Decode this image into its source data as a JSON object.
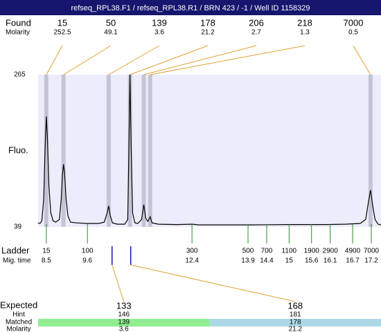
{
  "header": {
    "title": "refseq_RPL38.F1 / refseq_RPL38.R1 / BRN 423 / -1 / Well ID 1158329"
  },
  "chart_data": {
    "type": "electropherogram",
    "found_label": "Found",
    "found_molarity_label": "Molarity",
    "y_axis_label": "Fluo.",
    "found": {
      "sizes": [
        15,
        50,
        139,
        178,
        206,
        218,
        7000
      ],
      "molarity": [
        252.5,
        49.1,
        3.6,
        21.2,
        2.7,
        1.3,
        0.5
      ],
      "x": [
        8.5,
        8.96,
        10.17,
        10.74,
        11.11,
        11.28,
        17.18
      ]
    },
    "xlim": [
      8.28,
      17.46
    ],
    "ylim": [
      39,
      265
    ],
    "yticks": [
      39,
      265
    ],
    "trace": {
      "color": "#000000",
      "x": [
        8.28,
        8.33,
        8.38,
        8.43,
        8.47,
        8.5,
        8.53,
        8.57,
        8.62,
        8.68,
        8.75,
        8.85,
        8.9,
        8.93,
        8.96,
        8.99,
        9.03,
        9.08,
        9.15,
        9.3,
        9.6,
        9.9,
        10.05,
        10.12,
        10.17,
        10.21,
        10.27,
        10.4,
        10.6,
        10.68,
        10.71,
        10.74,
        10.77,
        10.81,
        10.87,
        10.95,
        11.05,
        11.11,
        11.16,
        11.22,
        11.28,
        11.33,
        11.5,
        12,
        12.4,
        12.6,
        13,
        14,
        15,
        16,
        16.5,
        16.9,
        17.05,
        17.12,
        17.18,
        17.24,
        17.3,
        17.38,
        17.46
      ],
      "y": [
        45,
        44,
        48,
        80,
        160,
        203,
        170,
        100,
        60,
        48,
        46,
        50,
        80,
        115,
        132,
        118,
        80,
        55,
        46,
        45,
        44,
        44,
        46,
        58,
        70,
        56,
        45,
        43,
        43,
        50,
        150,
        265,
        160,
        60,
        45,
        44,
        50,
        72,
        52,
        47,
        54,
        45,
        43,
        42.5,
        43,
        42,
        42,
        42,
        42.5,
        42.5,
        43,
        44,
        50,
        75,
        93.5,
        70,
        50,
        43,
        42
      ]
    },
    "ladder": {
      "label": "Ladder",
      "time_label": "Mig. time",
      "sizes": [
        15,
        100,
        300,
        500,
        700,
        1100,
        1900,
        2900,
        4900,
        7000
      ],
      "times": [
        8.5,
        9.6,
        12.4,
        13.9,
        14.4,
        15,
        15.6,
        16.1,
        16.7,
        17.2
      ]
    },
    "expected": {
      "label": "Expected",
      "hint_label": "Hint",
      "matched_label": "Matched",
      "molarity_label": "Molarity",
      "sizes": [
        133,
        168
      ],
      "x": [
        10.26,
        10.76
      ],
      "hint": [
        146,
        181
      ],
      "matched": [
        139,
        178
      ],
      "molarity": [
        3.6,
        21.2
      ],
      "matched_colors": [
        "#90ee90",
        "#add8e6"
      ]
    }
  }
}
